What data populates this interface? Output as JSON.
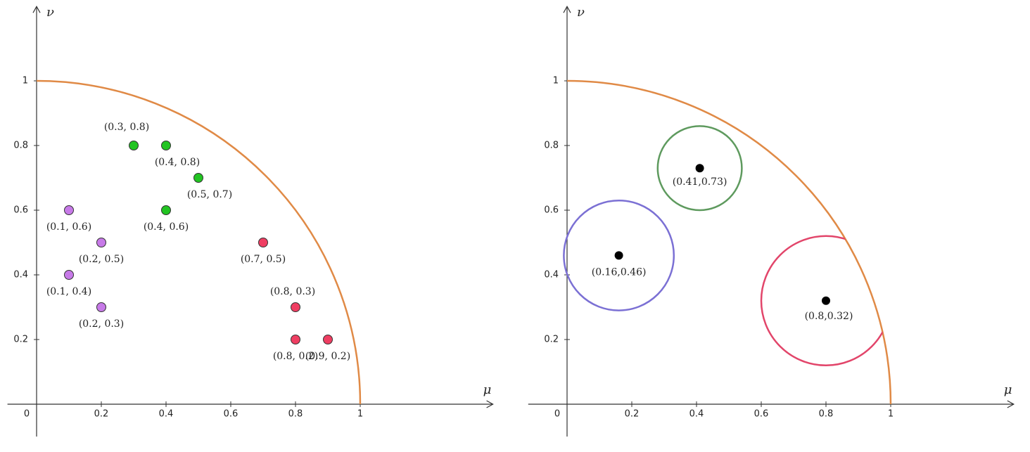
{
  "chart_data": [
    {
      "type": "scatter",
      "x_label": "μ",
      "y_label": "ν",
      "xlim": [
        -0.09,
        1.41
      ],
      "ylim": [
        -0.1,
        1.23
      ],
      "xticks": [
        0,
        0.2,
        0.4,
        0.6,
        0.8,
        1
      ],
      "yticks": [
        0.2,
        0.4,
        0.6,
        0.8,
        1
      ],
      "boundary": {
        "radius": 1,
        "color": "#e08a46"
      },
      "series": [
        {
          "color": "#22c422",
          "x": [
            0.3,
            0.4,
            0.5,
            0.4
          ],
          "values": [
            0.8,
            0.8,
            0.7,
            0.6
          ],
          "point_labels": [
            "(0.3, 0.8)",
            "(0.4, 0.8)",
            "(0.5, 0.7)",
            "(0.4, 0.6)"
          ]
        },
        {
          "color": "#c77ae8",
          "x": [
            0.1,
            0.2,
            0.1,
            0.2
          ],
          "values": [
            0.6,
            0.5,
            0.4,
            0.3
          ],
          "point_labels": [
            "(0.1, 0.6)",
            "(0.2, 0.5)",
            "(0.1, 0.4)",
            "(0.2, 0.3)"
          ]
        },
        {
          "color": "#ef3e62",
          "x": [
            0.7,
            0.8,
            0.8,
            0.9
          ],
          "values": [
            0.5,
            0.3,
            0.2,
            0.2
          ],
          "point_labels": [
            "(0.7, 0.5)",
            "(0.8, 0.3)",
            "(0.8, 0.2)",
            "(0.9, 0.2)"
          ]
        }
      ]
    },
    {
      "type": "circles",
      "x_label": "μ",
      "y_label": "ν",
      "xlim": [
        -0.12,
        1.38
      ],
      "ylim": [
        -0.1,
        1.23
      ],
      "xticks": [
        0,
        0.2,
        0.4,
        0.6,
        0.8,
        1
      ],
      "yticks": [
        0.2,
        0.4,
        0.6,
        0.8,
        1
      ],
      "boundary": {
        "radius": 1,
        "color": "#e08a46"
      },
      "point_color": "#000000",
      "series": [
        {
          "color": "#5e9a5e",
          "x": [
            0.41
          ],
          "values": [
            0.73
          ],
          "radius": [
            0.13
          ],
          "point_labels": [
            "(0.41,0.73)"
          ]
        },
        {
          "color": "#7b70d4",
          "x": [
            0.16
          ],
          "values": [
            0.46
          ],
          "radius": [
            0.17
          ],
          "point_labels": [
            "(0.16,0.46)"
          ]
        },
        {
          "color": "#e2456a",
          "x": [
            0.8
          ],
          "values": [
            0.32
          ],
          "radius": [
            0.2
          ],
          "point_labels": [
            "(0.8,0.32)"
          ]
        }
      ]
    }
  ]
}
